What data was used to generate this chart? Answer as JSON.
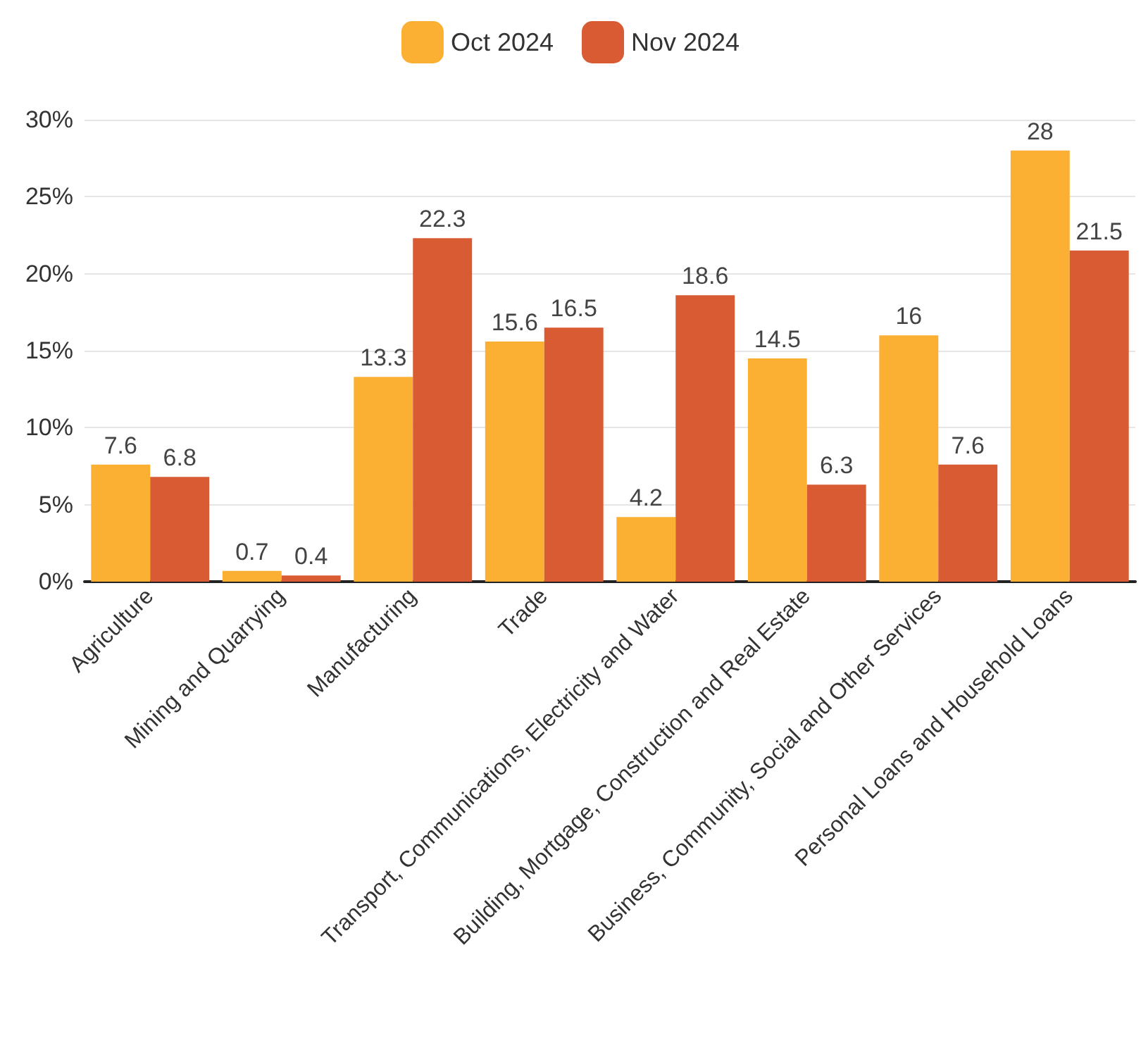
{
  "chart_data": {
    "type": "bar",
    "categories": [
      "Agriculture",
      "Mining and Quarrying",
      "Manufacturing",
      "Trade",
      "Transport, Communications, Electricity and Water",
      "Building, Mortgage, Construction and Real Estate",
      "Business, Community, Social and Other Services",
      "Personal Loans and Household Loans"
    ],
    "series": [
      {
        "name": "Oct 2024",
        "color": "#fbb034",
        "values": [
          7.6,
          0.7,
          13.3,
          15.6,
          4.2,
          14.5,
          16,
          28
        ]
      },
      {
        "name": "Nov 2024",
        "color": "#d95b33",
        "values": [
          6.8,
          0.4,
          22.3,
          16.5,
          18.6,
          6.3,
          7.6,
          21.5
        ]
      }
    ],
    "ylim": [
      0,
      30
    ],
    "yticks": [
      {
        "value": 0,
        "label": "0%"
      },
      {
        "value": 5,
        "label": "5%"
      },
      {
        "value": 10,
        "label": "10%"
      },
      {
        "value": 15,
        "label": "15%"
      },
      {
        "value": 20,
        "label": "20%"
      },
      {
        "value": 25,
        "label": "25%"
      },
      {
        "value": 30,
        "label": "30%"
      }
    ],
    "grid": "y",
    "legend": "top",
    "data_labels": true
  }
}
